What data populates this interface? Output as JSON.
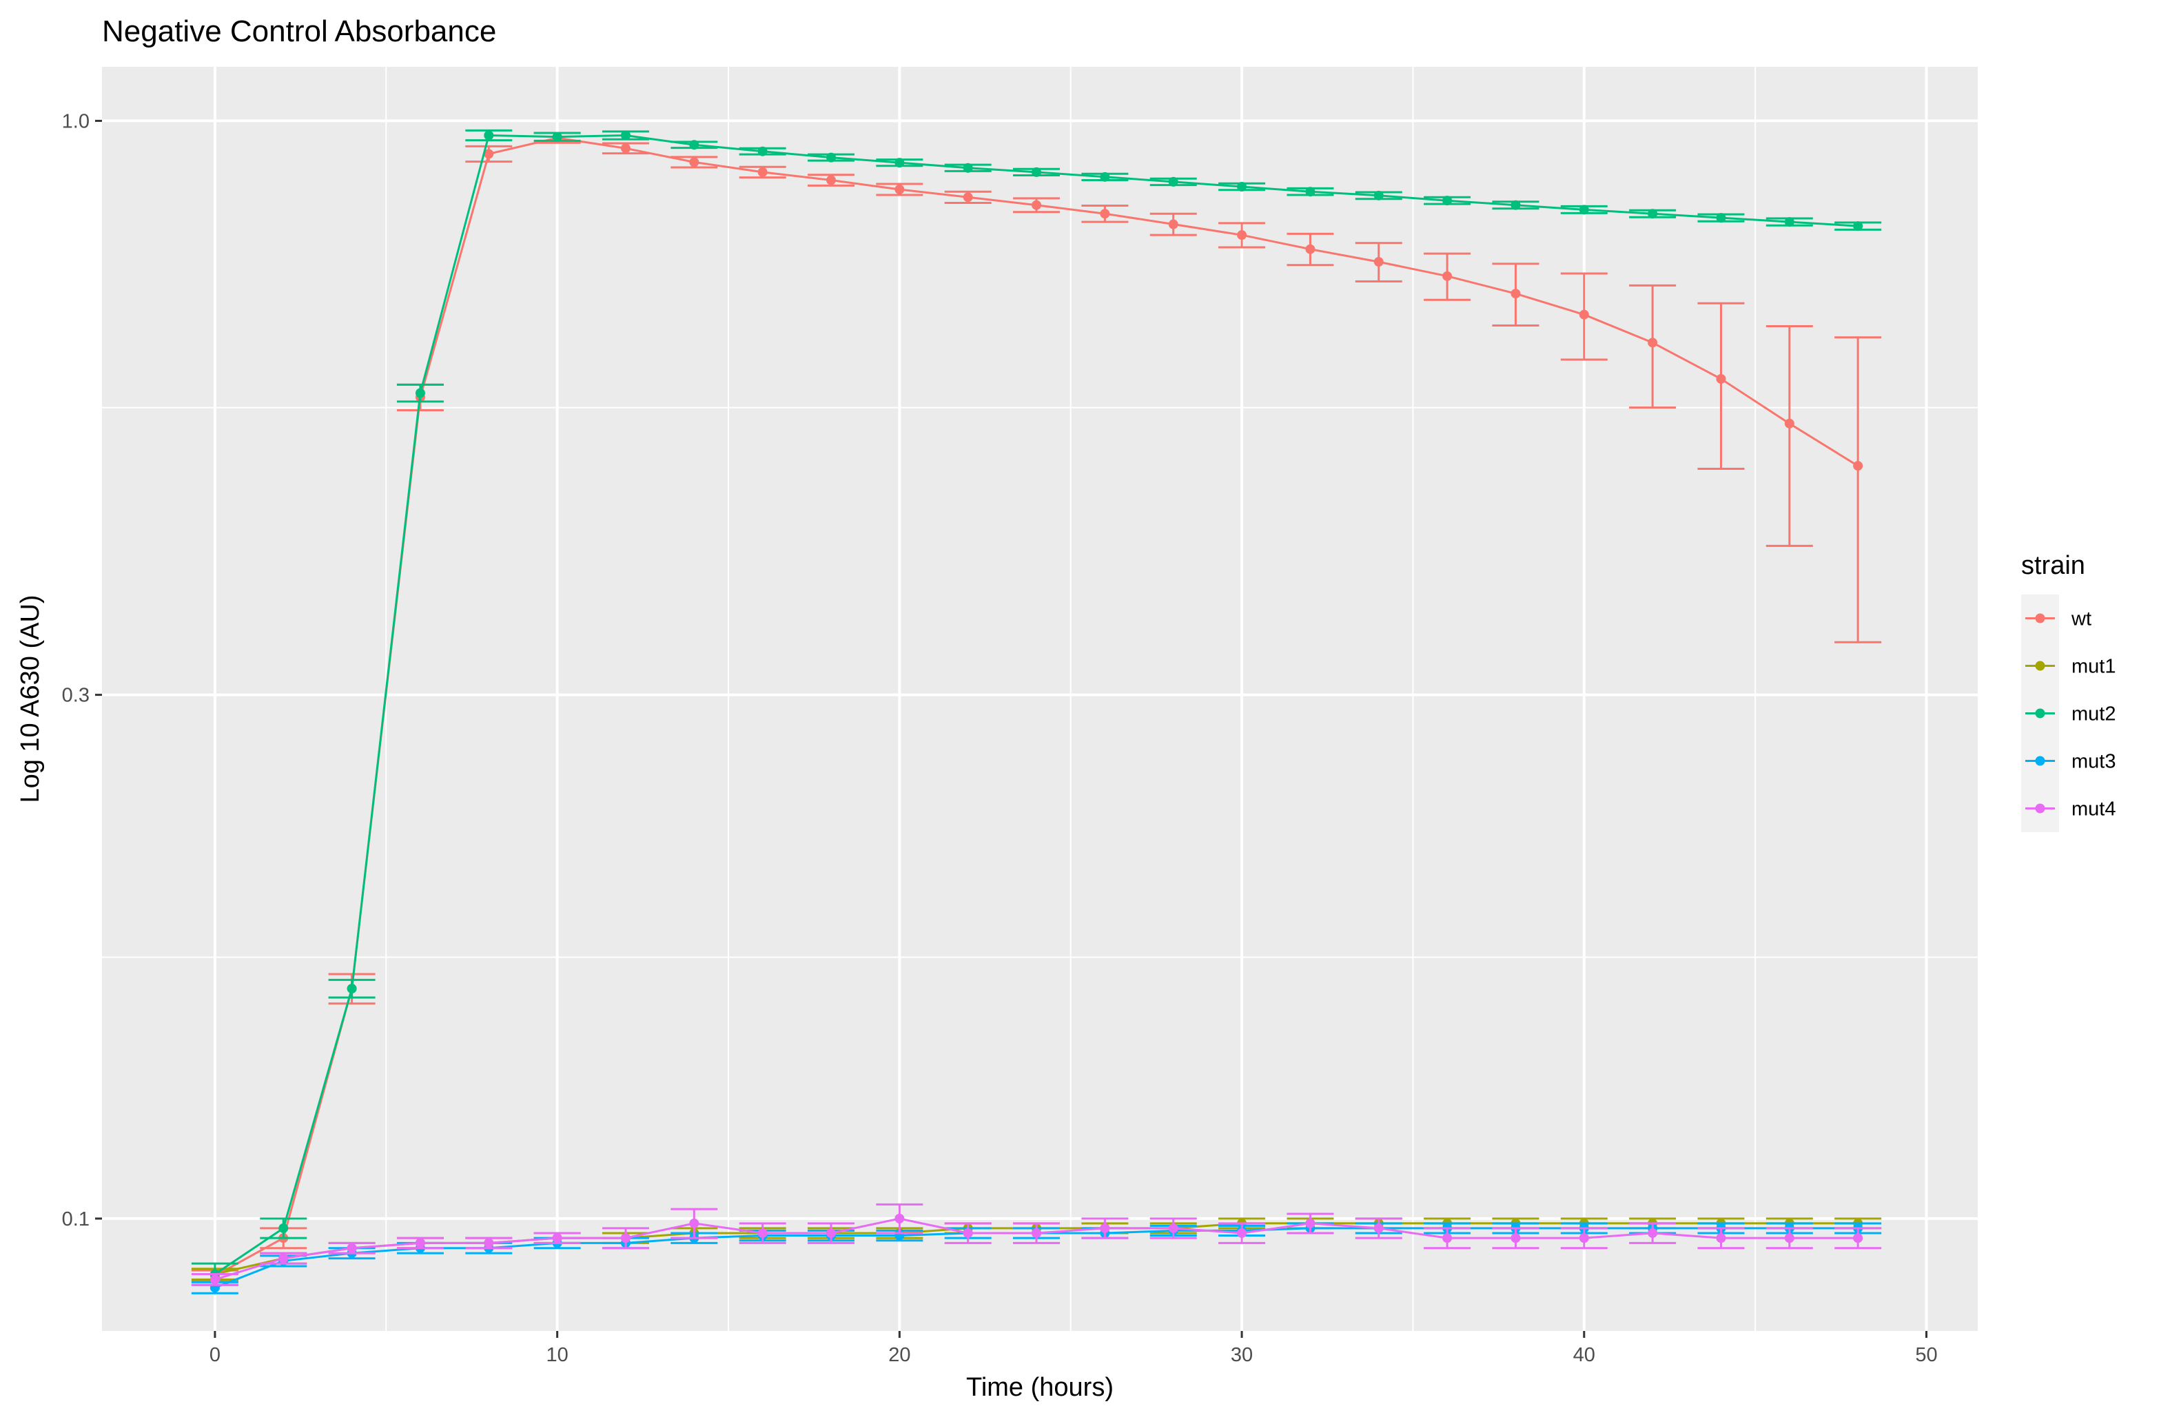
{
  "chart_data": {
    "type": "line",
    "title": "Negative Control Absorbance",
    "xlabel": "Time (hours)",
    "ylabel": "Log 10 A630 (AU)",
    "y_scale": "log10",
    "xlim": [
      -3.3,
      51.5
    ],
    "ylim": [
      0.079,
      1.12
    ],
    "x_ticks": [
      0,
      10,
      20,
      30,
      40,
      50
    ],
    "x_tick_labels": [
      "0",
      "10",
      "20",
      "30",
      "40",
      "50"
    ],
    "y_ticks": [
      0.1,
      0.3,
      1.0
    ],
    "y_tick_labels": [
      "0.1",
      "0.3",
      "1.0"
    ],
    "y_minor_ticks": [
      0.173,
      0.548
    ],
    "grid": true,
    "legend": {
      "title": "strain",
      "position": "right"
    },
    "x": [
      0,
      2,
      4,
      6,
      8,
      10,
      12,
      14,
      16,
      18,
      20,
      22,
      24,
      26,
      28,
      30,
      32,
      34,
      36,
      38,
      40,
      42,
      44,
      46,
      48
    ],
    "series": [
      {
        "name": "wt",
        "color": "#F8766D",
        "values": [
          0.0887,
          0.096,
          0.162,
          0.56,
          0.933,
          0.965,
          0.944,
          0.917,
          0.898,
          0.883,
          0.866,
          0.852,
          0.838,
          0.823,
          0.805,
          0.787,
          0.764,
          0.744,
          0.722,
          0.696,
          0.666,
          0.628,
          0.582,
          0.53,
          0.485
        ],
        "error": [
          0.001,
          0.002,
          0.005,
          0.015,
          0.015,
          0.01,
          0.01,
          0.01,
          0.01,
          0.01,
          0.01,
          0.01,
          0.012,
          0.014,
          0.018,
          0.02,
          0.025,
          0.03,
          0.035,
          0.045,
          0.06,
          0.08,
          0.1,
          0.12,
          0.15
        ]
      },
      {
        "name": "mut1",
        "color": "#A3A500",
        "values": [
          0.089,
          0.092,
          0.094,
          0.095,
          0.095,
          0.096,
          0.096,
          0.097,
          0.097,
          0.097,
          0.097,
          0.098,
          0.098,
          0.098,
          0.098,
          0.099,
          0.099,
          0.099,
          0.099,
          0.099,
          0.099,
          0.099,
          0.099,
          0.099,
          0.099
        ],
        "error": [
          0.001,
          0.001,
          0.001,
          0.001,
          0.001,
          0.001,
          0.001,
          0.001,
          0.001,
          0.001,
          0.001,
          0.001,
          0.001,
          0.001,
          0.001,
          0.001,
          0.001,
          0.001,
          0.001,
          0.001,
          0.001,
          0.001,
          0.001,
          0.001,
          0.001
        ]
      },
      {
        "name": "mut2",
        "color": "#00BF7D",
        "values": [
          0.089,
          0.098,
          0.162,
          0.565,
          0.97,
          0.967,
          0.97,
          0.951,
          0.938,
          0.926,
          0.916,
          0.906,
          0.898,
          0.889,
          0.88,
          0.871,
          0.862,
          0.855,
          0.846,
          0.838,
          0.83,
          0.823,
          0.816,
          0.809,
          0.802
        ],
        "error": [
          0.002,
          0.002,
          0.003,
          0.01,
          0.01,
          0.008,
          0.008,
          0.006,
          0.006,
          0.006,
          0.006,
          0.006,
          0.006,
          0.006,
          0.006,
          0.006,
          0.006,
          0.006,
          0.006,
          0.006,
          0.006,
          0.006,
          0.006,
          0.006,
          0.006
        ]
      },
      {
        "name": "mut3",
        "color": "#00B0F6",
        "values": [
          0.0865,
          0.0915,
          0.093,
          0.094,
          0.094,
          0.095,
          0.095,
          0.096,
          0.0965,
          0.0965,
          0.0965,
          0.097,
          0.097,
          0.097,
          0.0975,
          0.0975,
          0.098,
          0.098,
          0.098,
          0.098,
          0.098,
          0.098,
          0.098,
          0.098,
          0.098
        ],
        "error": [
          0.001,
          0.001,
          0.001,
          0.001,
          0.001,
          0.001,
          0.001,
          0.001,
          0.001,
          0.001,
          0.001,
          0.001,
          0.001,
          0.001,
          0.001,
          0.001,
          0.001,
          0.001,
          0.001,
          0.001,
          0.001,
          0.001,
          0.001,
          0.001,
          0.001
        ]
      },
      {
        "name": "mut4",
        "color": "#E76BF3",
        "values": [
          0.088,
          0.092,
          0.094,
          0.095,
          0.095,
          0.096,
          0.096,
          0.099,
          0.097,
          0.097,
          0.1,
          0.097,
          0.097,
          0.098,
          0.098,
          0.097,
          0.099,
          0.098,
          0.096,
          0.096,
          0.096,
          0.097,
          0.096,
          0.096,
          0.096
        ],
        "error": [
          0.001,
          0.001,
          0.001,
          0.001,
          0.001,
          0.001,
          0.002,
          0.003,
          0.002,
          0.002,
          0.003,
          0.002,
          0.002,
          0.002,
          0.002,
          0.002,
          0.002,
          0.002,
          0.002,
          0.002,
          0.002,
          0.002,
          0.002,
          0.002,
          0.002
        ]
      }
    ]
  }
}
